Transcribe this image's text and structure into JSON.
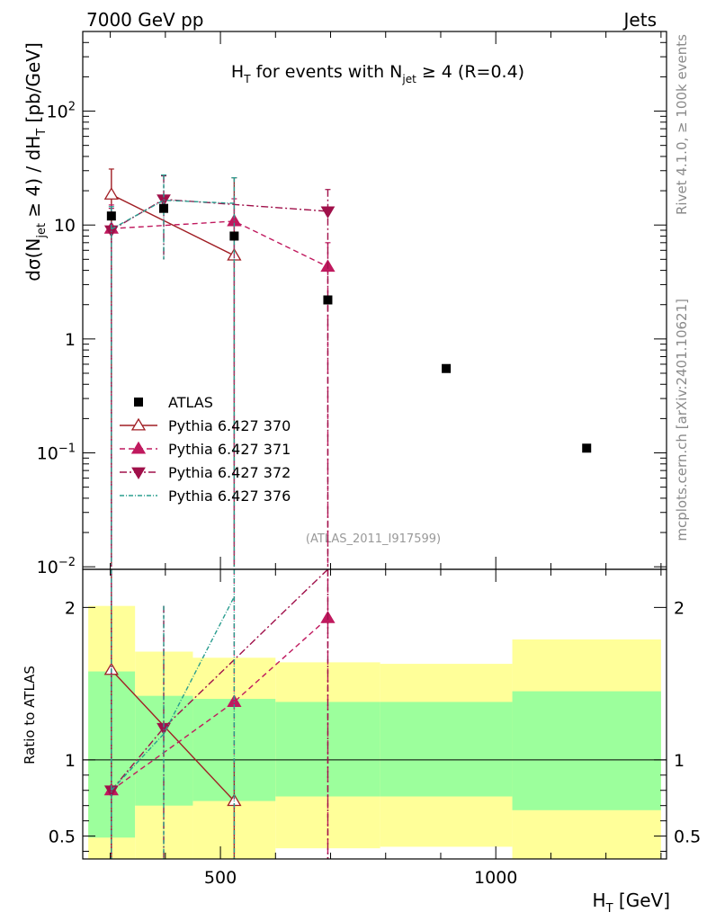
{
  "header": {
    "left": "7000 GeV pp",
    "right": "Jets"
  },
  "side": {
    "rivet": "Rivet 4.1.0, ≥ 100k events",
    "mcplots": "mcplots.cern.ch [arXiv:2401.10621]"
  },
  "watermark": "(ATLAS_2011_I917599)",
  "chart_data": {
    "type": "scatter",
    "title": "H_T for events with N_jet ≥ 4 (R=0.4)",
    "title_parts": {
      "main": "H",
      "sub1": "T",
      "mid": " for events with N",
      "sub2": "jet",
      "tail": " ≥ 4 (R=0.4)"
    },
    "xlabel": "H_T [GeV]",
    "xlabel_parts": {
      "main": "H",
      "sub": "T",
      "tail": " [GeV]"
    },
    "ylabel": "dσ(N_jet ≥ 4) / dH_T [pb/GeV]",
    "ylabel_parts": {
      "a": "dσ(N",
      "sub1": "jet",
      "b": " ≥ 4) / dH",
      "sub2": "T",
      "c": " [pb/GeV]"
    },
    "ratio_ylabel": "Ratio to ATLAS",
    "xlim": [
      250,
      1310
    ],
    "ylim": [
      0.0095,
      500
    ],
    "yscale": "log",
    "xticks": [
      500,
      1000
    ],
    "xtick_labels": [
      "500",
      "1000"
    ],
    "yticks": [
      0.01,
      0.1,
      1,
      10,
      100
    ],
    "ytick_labels": [
      {
        "base": "10",
        "exp": "−2"
      },
      {
        "base": "10",
        "exp": "−1"
      },
      {
        "base": "1",
        "exp": ""
      },
      {
        "base": "10",
        "exp": ""
      },
      {
        "base": "10",
        "exp": "2"
      }
    ],
    "ratio_ylim": [
      0.35,
      2.25
    ],
    "ratio_yticks": [
      0.5,
      1,
      2
    ],
    "ratio_ytick_labels": [
      "0.5",
      "1",
      "2"
    ],
    "bins": [
      {
        "lo": 260,
        "hi": 345,
        "x": 302,
        "y": 12.0,
        "band_inner": [
          0.49,
          1.58
        ],
        "band_outer": [
          0.35,
          2.01
        ]
      },
      {
        "lo": 345,
        "hi": 450,
        "x": 397,
        "y": 14.0,
        "band_inner": [
          0.7,
          1.42
        ],
        "band_outer": [
          0.35,
          1.71
        ]
      },
      {
        "lo": 450,
        "hi": 600,
        "x": 525,
        "y": 8.0,
        "band_inner": [
          0.73,
          1.4
        ],
        "band_outer": [
          0.35,
          1.67
        ]
      },
      {
        "lo": 600,
        "hi": 790,
        "x": 695,
        "y": 2.2,
        "band_inner": [
          0.76,
          1.38
        ],
        "band_outer": [
          0.42,
          1.64
        ]
      },
      {
        "lo": 790,
        "hi": 1030,
        "x": 910,
        "y": 0.55,
        "band_inner": [
          0.76,
          1.38
        ],
        "band_outer": [
          0.43,
          1.63
        ]
      },
      {
        "lo": 1030,
        "hi": 1300,
        "x": 1165,
        "y": 0.11,
        "band_inner": [
          0.67,
          1.45
        ],
        "band_outer": [
          0.35,
          1.79
        ]
      }
    ],
    "series": [
      {
        "name": "ATLAS",
        "key": "atlas",
        "color": "#000000",
        "marker": "square"
      },
      {
        "name": "Pythia 6.427 370",
        "key": "p370",
        "color": "#a01e24",
        "marker": "triangle-up-open",
        "dash": "",
        "x": [
          302,
          525
        ],
        "y": [
          18.5,
          5.4
        ],
        "err_lo": [
          0.01,
          0.01
        ],
        "err_hi": [
          31,
          26
        ],
        "ratio": [
          1.59,
          0.73
        ],
        "ratio_err": [
          [
            0.35,
            2.25
          ],
          [
            0.35,
            1.0
          ]
        ]
      },
      {
        "name": "Pythia 6.427 371",
        "key": "p371",
        "color": "#c0195e",
        "marker": "triangle-up",
        "dash": "6,4",
        "x": [
          302,
          525,
          695
        ],
        "y": [
          9.3,
          10.8,
          4.3
        ],
        "err_lo": [
          0.01,
          0.01,
          0.01
        ],
        "err_hi": [
          15.0,
          17.0,
          7.0
        ],
        "ratio": [
          0.8,
          1.38,
          1.93
        ],
        "ratio_err": [
          [
            0.35,
            2.25
          ],
          [
            0.35,
            2.25
          ],
          [
            0.35,
            2.25
          ]
        ]
      },
      {
        "name": "Pythia 6.427 372",
        "key": "p372",
        "color": "#a0104a",
        "marker": "triangle-down",
        "dash": "8,3,2,3",
        "x": [
          302,
          397,
          695
        ],
        "y": [
          9.0,
          16.8,
          13.2
        ],
        "err_lo": [
          0.01,
          4.8,
          0.01
        ],
        "err_hi": [
          14.0,
          27.0,
          20.5
        ],
        "ratio": [
          0.8,
          1.21,
          2.25
        ],
        "ratio_err": [
          [
            0.35,
            2.25
          ],
          [
            0.35,
            2.01
          ],
          [
            0.35,
            2.25
          ]
        ]
      },
      {
        "name": "Pythia 6.427 376",
        "key": "p376",
        "color": "#2a9d8f",
        "marker": "none",
        "dash": "5,2,1,2",
        "x": [
          302,
          397,
          525
        ],
        "y": [
          9.2,
          16.5,
          15.5
        ],
        "err_lo": [
          0.01,
          5.0,
          0.01
        ],
        "err_hi": [
          14.5,
          27.5,
          26.0
        ],
        "ratio": [
          0.8,
          1.17,
          2.07
        ],
        "ratio_err": [
          [
            0.35,
            2.25
          ],
          [
            0.35,
            2.01
          ],
          [
            0.35,
            2.25
          ]
        ]
      }
    ],
    "legend_position": "center-left",
    "band_colors": {
      "inner": "#9cff9c",
      "outer": "#ffff99"
    }
  }
}
